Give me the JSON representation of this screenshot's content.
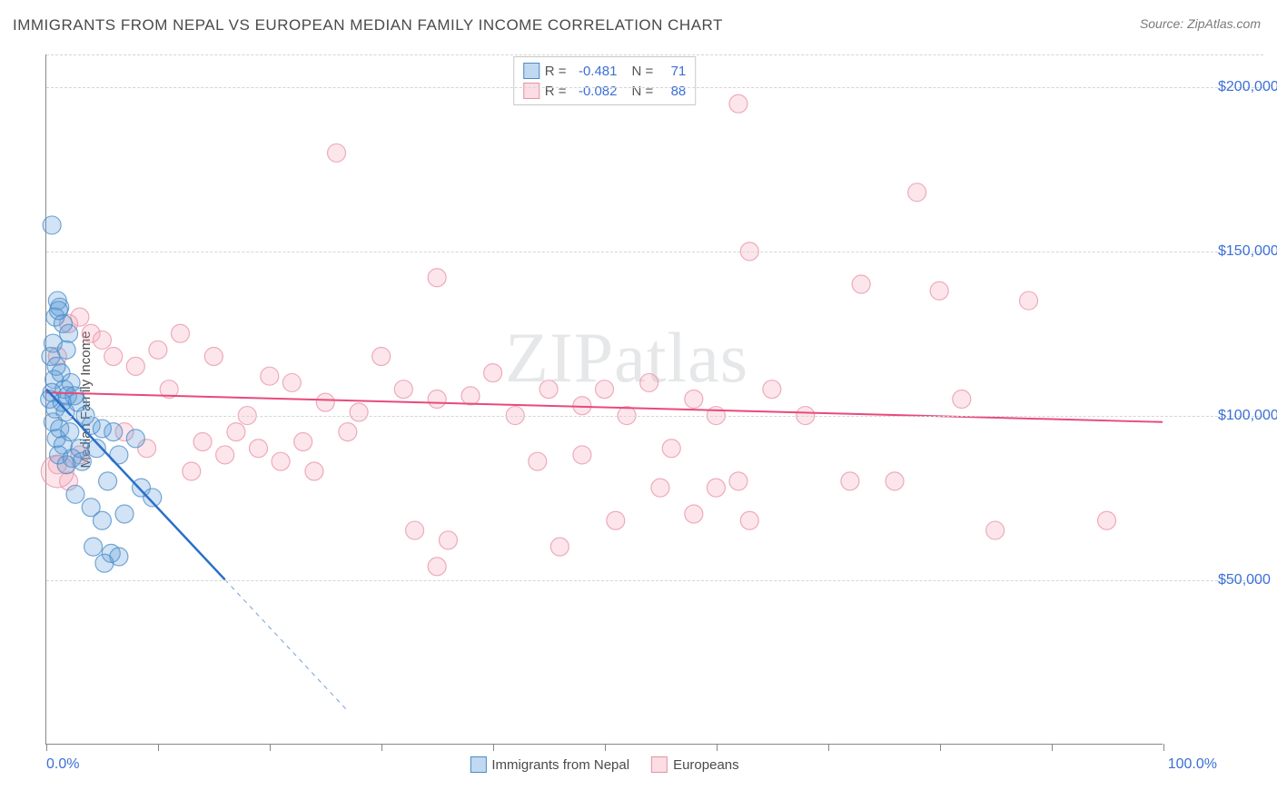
{
  "title": "IMMIGRANTS FROM NEPAL VS EUROPEAN MEDIAN FAMILY INCOME CORRELATION CHART",
  "source": "Source: ZipAtlas.com",
  "watermark": "ZIPatlas",
  "yaxis_title": "Median Family Income",
  "chart": {
    "type": "scatter",
    "xlim": [
      0,
      100
    ],
    "ylim": [
      0,
      210000
    ],
    "xtick_step": 10,
    "xaxis_labels": {
      "left": "0.0%",
      "right": "100.0%"
    },
    "yticks": [
      50000,
      100000,
      150000,
      200000
    ],
    "ytick_labels": [
      "$50,000",
      "$100,000",
      "$150,000",
      "$200,000"
    ],
    "grid_color": "#d5d5d5",
    "background_color": "#ffffff",
    "axis_color": "#888888",
    "marker_radius": 10,
    "marker_radius_large": 18,
    "marker_fill_opacity": 0.28,
    "marker_stroke_opacity": 0.75,
    "series": [
      {
        "name": "Immigrants from Nepal",
        "color": "#5a9bd8",
        "stroke": "#4a8bc8",
        "R": -0.481,
        "N": 71,
        "trend": {
          "x1": 0,
          "y1": 108000,
          "x2": 16,
          "y2": 50000,
          "extend_x2": 27,
          "extend_y2": 10000
        },
        "points": [
          [
            0.5,
            158000
          ],
          [
            1,
            135000
          ],
          [
            1.2,
            133000
          ],
          [
            0.8,
            130000
          ],
          [
            1.5,
            128000
          ],
          [
            0.6,
            122000
          ],
          [
            1.1,
            132000
          ],
          [
            2,
            125000
          ],
          [
            1.8,
            120000
          ],
          [
            0.4,
            118000
          ],
          [
            0.9,
            115000
          ],
          [
            1.3,
            113000
          ],
          [
            0.7,
            111000
          ],
          [
            2.2,
            110000
          ],
          [
            1.6,
            108000
          ],
          [
            0.5,
            107000
          ],
          [
            1.9,
            106000
          ],
          [
            2.5,
            106000
          ],
          [
            0.3,
            105000
          ],
          [
            1.4,
            104000
          ],
          [
            2.8,
            104000
          ],
          [
            0.8,
            102000
          ],
          [
            1.7,
            101000
          ],
          [
            3.5,
            100000
          ],
          [
            0.6,
            98000
          ],
          [
            1.2,
            96000
          ],
          [
            2.1,
            95000
          ],
          [
            4,
            97000
          ],
          [
            0.9,
            93000
          ],
          [
            5,
            96000
          ],
          [
            1.5,
            91000
          ],
          [
            3,
            90000
          ],
          [
            6,
            95000
          ],
          [
            1.1,
            88000
          ],
          [
            8,
            93000
          ],
          [
            2.3,
            87000
          ],
          [
            4.5,
            90000
          ],
          [
            1.8,
            85000
          ],
          [
            6.5,
            88000
          ],
          [
            3.2,
            86000
          ],
          [
            5.5,
            80000
          ],
          [
            8.5,
            78000
          ],
          [
            2.6,
            76000
          ],
          [
            9.5,
            75000
          ],
          [
            4,
            72000
          ],
          [
            7,
            70000
          ],
          [
            5,
            68000
          ],
          [
            4.2,
            60000
          ],
          [
            5.8,
            58000
          ],
          [
            6.5,
            57000
          ],
          [
            5.2,
            55000
          ]
        ]
      },
      {
        "name": "Europeans",
        "color": "#f4a6b8",
        "stroke": "#e891a5",
        "R": -0.082,
        "N": 88,
        "trend": {
          "x1": 0,
          "y1": 107000,
          "x2": 100,
          "y2": 98000
        },
        "points": [
          [
            62,
            195000
          ],
          [
            26,
            180000
          ],
          [
            78,
            168000
          ],
          [
            35,
            142000
          ],
          [
            63,
            150000
          ],
          [
            73,
            140000
          ],
          [
            80,
            138000
          ],
          [
            3,
            130000
          ],
          [
            4,
            125000
          ],
          [
            2,
            128000
          ],
          [
            5,
            123000
          ],
          [
            12,
            125000
          ],
          [
            10,
            120000
          ],
          [
            88,
            135000
          ],
          [
            15,
            118000
          ],
          [
            8,
            115000
          ],
          [
            6,
            118000
          ],
          [
            20,
            112000
          ],
          [
            11,
            108000
          ],
          [
            22,
            110000
          ],
          [
            30,
            118000
          ],
          [
            32,
            108000
          ],
          [
            35,
            105000
          ],
          [
            25,
            104000
          ],
          [
            28,
            101000
          ],
          [
            18,
            100000
          ],
          [
            40,
            113000
          ],
          [
            38,
            106000
          ],
          [
            45,
            108000
          ],
          [
            48,
            103000
          ],
          [
            50,
            108000
          ],
          [
            42,
            100000
          ],
          [
            54,
            110000
          ],
          [
            58,
            105000
          ],
          [
            44,
            86000
          ],
          [
            52,
            100000
          ],
          [
            55,
            78000
          ],
          [
            48,
            88000
          ],
          [
            60,
            100000
          ],
          [
            33,
            65000
          ],
          [
            36,
            62000
          ],
          [
            35,
            54000
          ],
          [
            46,
            60000
          ],
          [
            51,
            68000
          ],
          [
            56,
            90000
          ],
          [
            62,
            80000
          ],
          [
            65,
            108000
          ],
          [
            60,
            78000
          ],
          [
            68,
            100000
          ],
          [
            58,
            70000
          ],
          [
            63,
            68000
          ],
          [
            72,
            80000
          ],
          [
            76,
            80000
          ],
          [
            82,
            105000
          ],
          [
            85,
            65000
          ],
          [
            95,
            68000
          ],
          [
            17,
            95000
          ],
          [
            14,
            92000
          ],
          [
            19,
            90000
          ],
          [
            23,
            92000
          ],
          [
            16,
            88000
          ],
          [
            27,
            95000
          ],
          [
            21,
            86000
          ],
          [
            24,
            83000
          ],
          [
            13,
            83000
          ],
          [
            9,
            90000
          ],
          [
            7,
            95000
          ],
          [
            3,
            88000
          ],
          [
            1,
            85000
          ],
          [
            2,
            80000
          ],
          [
            1,
            118000
          ]
        ],
        "large_points": [
          [
            1,
            83000
          ]
        ]
      }
    ]
  },
  "legend_bottom": [
    "Immigrants from Nepal",
    "Europeans"
  ]
}
